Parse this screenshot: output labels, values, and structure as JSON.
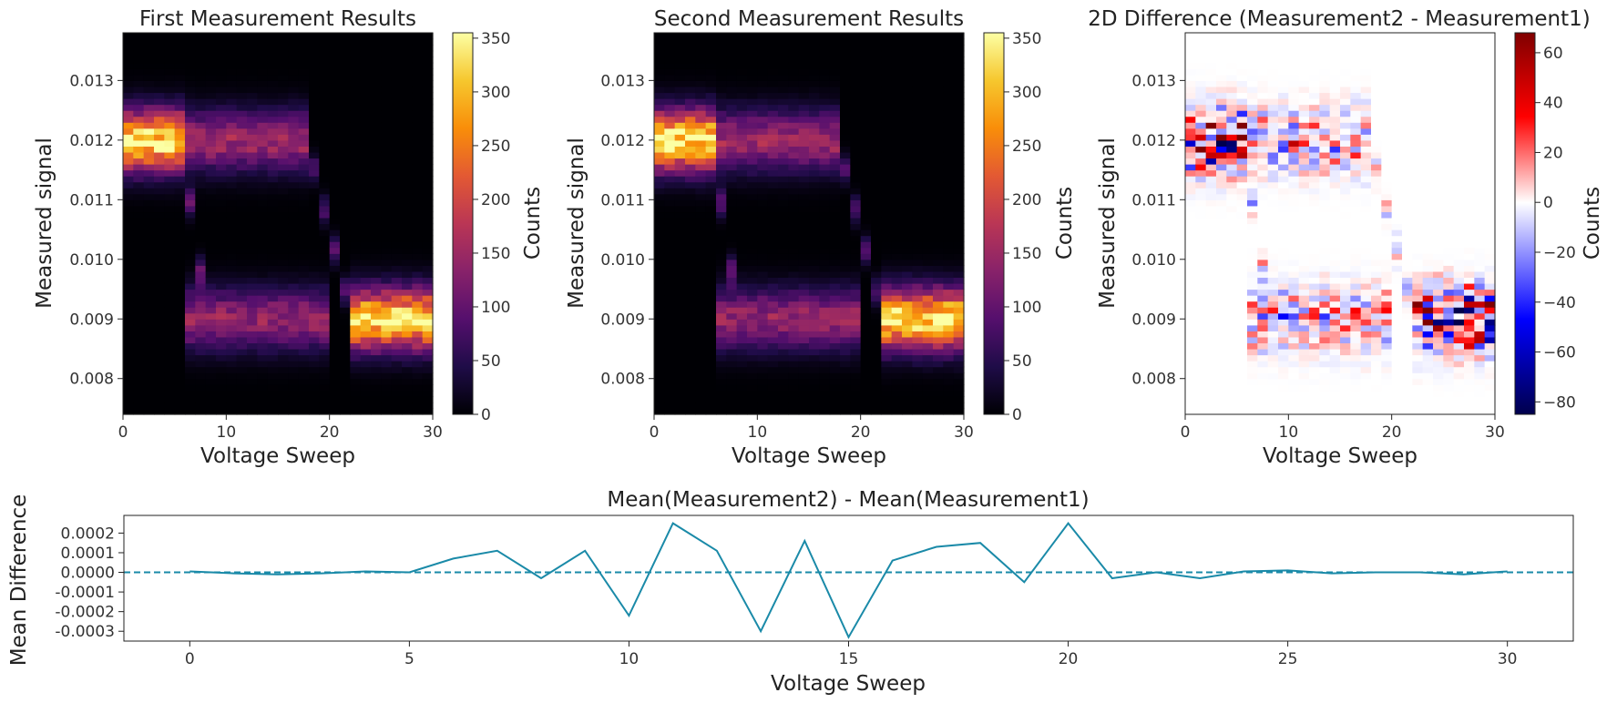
{
  "chart_data": [
    {
      "id": "first",
      "type": "heatmap",
      "title": "First Measurement Results",
      "xlabel": "Voltage Sweep",
      "ylabel": "Measured signal",
      "xlim": [
        0,
        30
      ],
      "ylim": [
        0.0074,
        0.0138
      ],
      "xticks": [
        "0",
        "10",
        "20",
        "30"
      ],
      "yticks": [
        "0.008",
        "0.009",
        "0.010",
        "0.011",
        "0.012",
        "0.013"
      ],
      "colormap": "inferno",
      "colorbar": {
        "label": "Counts",
        "range": [
          0,
          355
        ],
        "ticks": [
          "0",
          "50",
          "100",
          "150",
          "200",
          "250",
          "300",
          "350"
        ]
      },
      "levels": {
        "upper": 0.012,
        "lower": 0.009
      },
      "peak_counts": {
        "upper_plateau": 330,
        "hysteresis_region": 150,
        "lower_plateau": 320
      }
    },
    {
      "id": "second",
      "type": "heatmap",
      "title": "Second Measurement Results",
      "xlabel": "Voltage Sweep",
      "ylabel": "Measured signal",
      "xlim": [
        0,
        30
      ],
      "ylim": [
        0.0074,
        0.0138
      ],
      "xticks": [
        "0",
        "10",
        "20",
        "30"
      ],
      "yticks": [
        "0.008",
        "0.009",
        "0.010",
        "0.011",
        "0.012",
        "0.013"
      ],
      "colormap": "inferno",
      "colorbar": {
        "label": "Counts",
        "range": [
          0,
          355
        ],
        "ticks": [
          "0",
          "50",
          "100",
          "150",
          "200",
          "250",
          "300",
          "350"
        ]
      },
      "levels": {
        "upper": 0.012,
        "lower": 0.009
      },
      "peak_counts": {
        "upper_plateau": 340,
        "hysteresis_region": 150,
        "lower_plateau": 330
      }
    },
    {
      "id": "diff",
      "type": "heatmap",
      "title": "2D Difference (Measurement2 - Measurement1)",
      "xlabel": "Voltage Sweep",
      "ylabel": "Measured signal",
      "xlim": [
        0,
        30
      ],
      "ylim": [
        0.0074,
        0.0138
      ],
      "xticks": [
        "0",
        "10",
        "20",
        "30"
      ],
      "yticks": [
        "0.008",
        "0.009",
        "0.010",
        "0.011",
        "0.012",
        "0.013"
      ],
      "colormap": "seismic",
      "colorbar": {
        "label": "Counts",
        "range": [
          -85,
          68
        ],
        "ticks": [
          "60",
          "40",
          "20",
          "0",
          "−20",
          "−40",
          "−60",
          "−80"
        ]
      }
    },
    {
      "id": "mean",
      "type": "line",
      "title": "Mean(Measurement2) - Mean(Measurement1)",
      "xlabel": "Voltage Sweep",
      "ylabel": "Mean Difference",
      "xlim": [
        -1.5,
        31.5
      ],
      "ylim": [
        -0.00035,
        0.00029
      ],
      "xticks": [
        "0",
        "5",
        "10",
        "15",
        "20",
        "25",
        "30"
      ],
      "yticks": [
        "0.0002",
        "0.0001",
        "0.0000",
        "-0.0001",
        "-0.0002",
        "-0.0003"
      ],
      "x": [
        0,
        1,
        2,
        3,
        4,
        5,
        6,
        7,
        8,
        9,
        10,
        11,
        12,
        13,
        14,
        15,
        16,
        17,
        18,
        19,
        20,
        21,
        22,
        23,
        24,
        25,
        26,
        27,
        28,
        29,
        30
      ],
      "series": [
        {
          "name": "mean difference",
          "values": [
            5e-06,
            -5e-06,
            -1e-05,
            -5e-06,
            5e-06,
            0.0,
            7e-05,
            0.00011,
            -3e-05,
            0.00011,
            -0.00022,
            0.00025,
            0.00011,
            -0.0003,
            0.00016,
            -0.00033,
            6e-05,
            0.00013,
            0.00015,
            -5e-05,
            0.00025,
            -3e-05,
            0.0,
            -3e-05,
            5e-06,
            1e-05,
            -5e-06,
            0.0,
            0.0,
            -1e-05,
            5e-06
          ]
        }
      ],
      "reference_line": {
        "y": 0.0,
        "style": "dashed"
      },
      "line_color": "#1a8aa8"
    }
  ]
}
